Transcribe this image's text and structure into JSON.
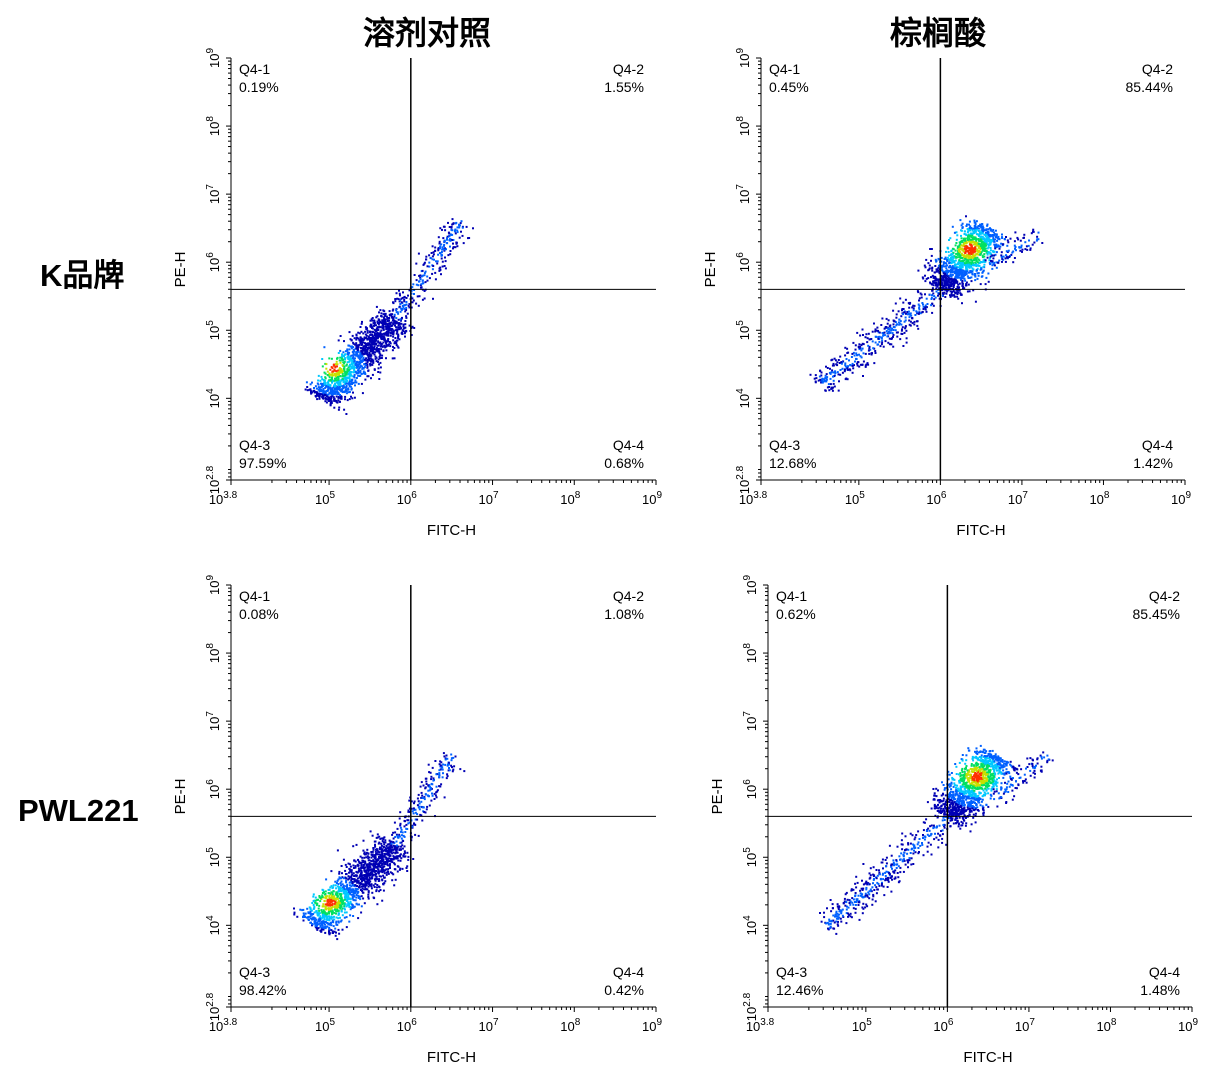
{
  "headers": {
    "columns": [
      "溶剂对照",
      "棕榈酸"
    ],
    "rows": [
      "K品牌",
      "PWL221"
    ]
  },
  "colors": {
    "axis": "#000000",
    "gate_line": "#000000",
    "density_ramp": [
      "#0000b4",
      "#0060ff",
      "#00c8ff",
      "#00e060",
      "#c8e000",
      "#ff3000"
    ]
  },
  "chart_data": [
    {
      "type": "scatter",
      "subtype": "flow-cytometry density dot plot",
      "row": "K品牌",
      "column": "溶剂对照",
      "xlabel": "FITC-H",
      "ylabel": "PE-H",
      "scale": "log10",
      "xlim_exp": [
        3.8,
        9
      ],
      "ylim_exp": [
        2.8,
        9
      ],
      "x_ticks": [
        "10^3.8",
        "10^5",
        "10^6",
        "10^7",
        "10^8",
        "10^9"
      ],
      "y_ticks": [
        "10^2.8",
        "10^4",
        "10^5",
        "10^6",
        "10^7",
        "10^8",
        "10^9"
      ],
      "gate": {
        "x_exp": 6.0,
        "y_exp": 5.6
      },
      "quadrants": [
        {
          "name": "Q4-1",
          "percent": "0.19%",
          "pos": "top-left"
        },
        {
          "name": "Q4-2",
          "percent": "1.55%",
          "pos": "top-right"
        },
        {
          "name": "Q4-3",
          "percent": "97.59%",
          "pos": "bottom-left"
        },
        {
          "name": "Q4-4",
          "percent": "0.68%",
          "pos": "bottom-right"
        }
      ],
      "clusters": [
        {
          "from": [
            4.9,
            4.0
          ],
          "to": [
            5.8,
            5.2
          ],
          "width": 0.12,
          "n": 1300,
          "hot": [
            5.05,
            4.45
          ]
        },
        {
          "from": [
            5.8,
            5.2
          ],
          "to": [
            6.6,
            6.6
          ],
          "width": 0.08,
          "n": 260,
          "hot": null
        }
      ]
    },
    {
      "type": "scatter",
      "subtype": "flow-cytometry density dot plot",
      "row": "K品牌",
      "column": "棕榈酸",
      "xlabel": "FITC-H",
      "ylabel": "PE-H",
      "scale": "log10",
      "xlim_exp": [
        3.8,
        9
      ],
      "ylim_exp": [
        2.8,
        9
      ],
      "x_ticks": [
        "10^3.8",
        "10^5",
        "10^6",
        "10^7",
        "10^8",
        "10^9"
      ],
      "y_ticks": [
        "10^2.8",
        "10^4",
        "10^5",
        "10^6",
        "10^7",
        "10^8",
        "10^9"
      ],
      "gate": {
        "x_exp": 6.0,
        "y_exp": 5.6
      },
      "quadrants": [
        {
          "name": "Q4-1",
          "percent": "0.45%",
          "pos": "top-left"
        },
        {
          "name": "Q4-2",
          "percent": "85.44%",
          "pos": "top-right"
        },
        {
          "name": "Q4-3",
          "percent": "12.68%",
          "pos": "bottom-left"
        },
        {
          "name": "Q4-4",
          "percent": "1.42%",
          "pos": "bottom-right"
        }
      ],
      "clusters": [
        {
          "from": [
            4.5,
            4.2
          ],
          "to": [
            6.0,
            5.6
          ],
          "width": 0.09,
          "n": 420,
          "hot": null
        },
        {
          "from": [
            6.0,
            5.6
          ],
          "to": [
            6.6,
            6.5
          ],
          "width": 0.14,
          "n": 1200,
          "hot": [
            6.35,
            6.2
          ]
        },
        {
          "from": [
            6.6,
            6.0
          ],
          "to": [
            7.2,
            6.4
          ],
          "width": 0.07,
          "n": 80,
          "hot": null
        }
      ]
    },
    {
      "type": "scatter",
      "subtype": "flow-cytometry density dot plot",
      "row": "PWL221",
      "column": "溶剂对照",
      "xlabel": "FITC-H",
      "ylabel": "PE-H",
      "scale": "log10",
      "xlim_exp": [
        3.8,
        9
      ],
      "ylim_exp": [
        2.8,
        9
      ],
      "x_ticks": [
        "10^3.8",
        "10^5",
        "10^6",
        "10^7",
        "10^8",
        "10^9"
      ],
      "y_ticks": [
        "10^2.8",
        "10^4",
        "10^5",
        "10^6",
        "10^7",
        "10^8",
        "10^9"
      ],
      "gate": {
        "x_exp": 6.0,
        "y_exp": 5.6
      },
      "quadrants": [
        {
          "name": "Q4-1",
          "percent": "0.08%",
          "pos": "top-left"
        },
        {
          "name": "Q4-2",
          "percent": "1.08%",
          "pos": "top-right"
        },
        {
          "name": "Q4-3",
          "percent": "98.42%",
          "pos": "bottom-left"
        },
        {
          "name": "Q4-4",
          "percent": "0.42%",
          "pos": "bottom-right"
        }
      ],
      "clusters": [
        {
          "from": [
            4.8,
            4.0
          ],
          "to": [
            5.8,
            5.2
          ],
          "width": 0.12,
          "n": 1300,
          "hot": [
            5.0,
            4.35
          ]
        },
        {
          "from": [
            5.8,
            5.2
          ],
          "to": [
            6.5,
            6.5
          ],
          "width": 0.08,
          "n": 220,
          "hot": null
        }
      ]
    },
    {
      "type": "scatter",
      "subtype": "flow-cytometry density dot plot",
      "row": "PWL221",
      "column": "棕榈酸",
      "xlabel": "FITC-H",
      "ylabel": "PE-H",
      "scale": "log10",
      "xlim_exp": [
        3.8,
        9
      ],
      "ylim_exp": [
        2.8,
        9
      ],
      "x_ticks": [
        "10^3.8",
        "10^5",
        "10^6",
        "10^7",
        "10^8",
        "10^9"
      ],
      "y_ticks": [
        "10^2.8",
        "10^4",
        "10^5",
        "10^6",
        "10^7",
        "10^8",
        "10^9"
      ],
      "gate": {
        "x_exp": 6.0,
        "y_exp": 5.6
      },
      "quadrants": [
        {
          "name": "Q4-1",
          "percent": "0.62%",
          "pos": "top-left"
        },
        {
          "name": "Q4-2",
          "percent": "85.45%",
          "pos": "top-right"
        },
        {
          "name": "Q4-3",
          "percent": "12.46%",
          "pos": "bottom-left"
        },
        {
          "name": "Q4-4",
          "percent": "1.48%",
          "pos": "bottom-right"
        }
      ],
      "clusters": [
        {
          "from": [
            4.5,
            4.0
          ],
          "to": [
            6.0,
            5.6
          ],
          "width": 0.09,
          "n": 420,
          "hot": null
        },
        {
          "from": [
            6.0,
            5.6
          ],
          "to": [
            6.6,
            6.5
          ],
          "width": 0.14,
          "n": 1200,
          "hot": [
            6.35,
            6.2
          ]
        },
        {
          "from": [
            6.6,
            5.9
          ],
          "to": [
            7.2,
            6.5
          ],
          "width": 0.07,
          "n": 80,
          "hot": null
        }
      ]
    }
  ]
}
